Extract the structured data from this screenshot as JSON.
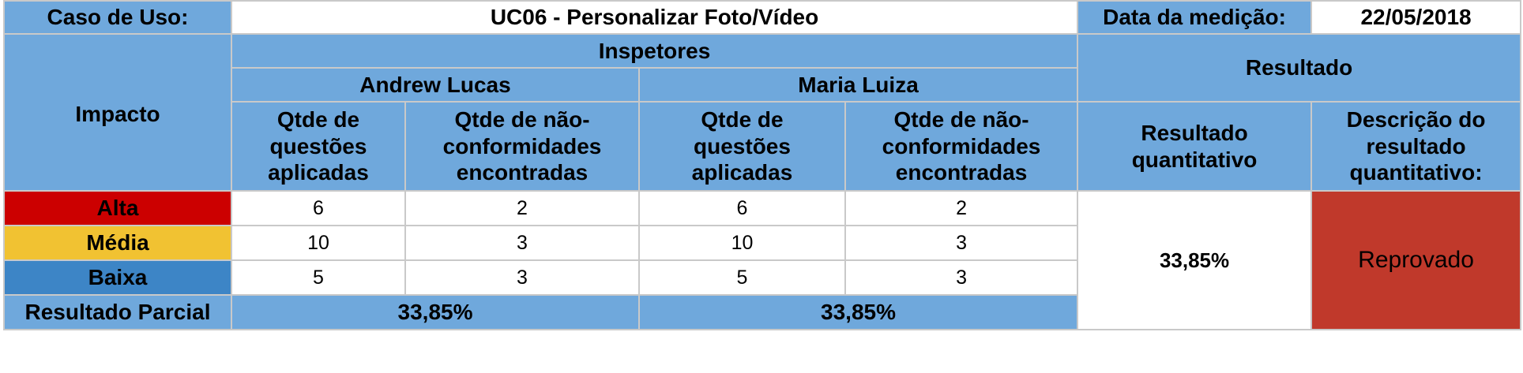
{
  "header": {
    "use_case_label": "Caso de Uso:",
    "use_case_value": "UC06 - Personalizar Foto/Vídeo",
    "date_label": "Data da medição:",
    "date_value": "22/05/2018"
  },
  "columns": {
    "impact": "Impacto",
    "inspectors": "Inspetores",
    "result": "Resultado",
    "inspector_names": [
      "Andrew Lucas",
      "Maria Luiza"
    ],
    "questions_applied": "Qtde de questões aplicadas",
    "nonconformities_found": "Qtde de não-conformidades encontradas",
    "quantitative_result": "Resultado quantitativo",
    "quantitative_description": "Descrição do resultado quantitativo:"
  },
  "rows": [
    {
      "impact": "Alta",
      "severity_color": "#cc0000",
      "values": [
        "6",
        "2",
        "6",
        "2"
      ]
    },
    {
      "impact": "Média",
      "severity_color": "#f1c232",
      "values": [
        "10",
        "3",
        "10",
        "3"
      ]
    },
    {
      "impact": "Baixa",
      "severity_color": "#3d85c6",
      "values": [
        "5",
        "3",
        "5",
        "3"
      ]
    }
  ],
  "partial": {
    "label": "Resultado Parcial",
    "values": [
      "33,85%",
      "33,85%"
    ]
  },
  "result": {
    "quantitative": "33,85%",
    "description": "Reprovado",
    "description_color": "#c0392b"
  },
  "colors": {
    "header_blue": "#6fa8dc"
  }
}
